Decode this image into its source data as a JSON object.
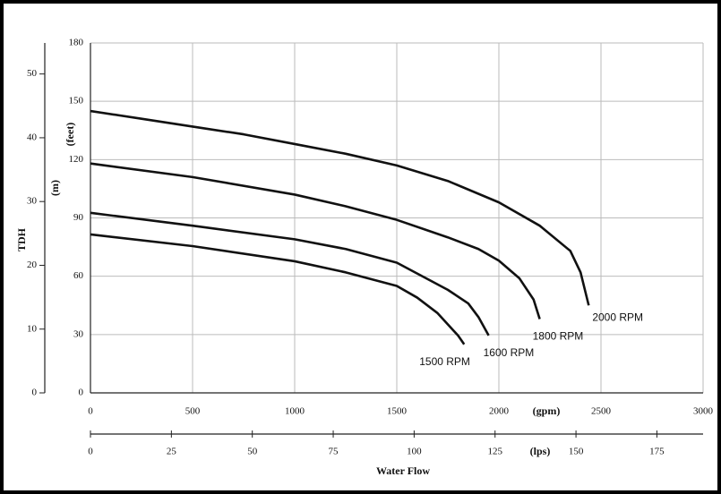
{
  "chart_data": {
    "type": "line",
    "y_label": "TDH",
    "y_unit": "(feet)",
    "y2_unit": "(m)",
    "x_unit": "(gpm)",
    "x2_unit": "(lps)",
    "x_label": "Water Flow",
    "xlim": [
      0,
      3000
    ],
    "xticks": [
      0,
      500,
      1000,
      1500,
      2000,
      2500,
      3000
    ],
    "x2lim": [
      0,
      189.27
    ],
    "x2ticks": [
      0,
      25,
      50,
      75,
      100,
      125,
      150,
      175
    ],
    "ylim": [
      0,
      180
    ],
    "yticks": [
      0,
      30,
      60,
      90,
      120,
      150,
      180
    ],
    "y2lim": [
      0,
      54.864
    ],
    "y2ticks": [
      0,
      10,
      20,
      30,
      40,
      50
    ],
    "grid": true,
    "series": [
      {
        "name": "2000 RPM",
        "color": "#111111",
        "x": [
          0,
          250,
          500,
          750,
          1000,
          1250,
          1500,
          1750,
          2000,
          2200,
          2350,
          2400,
          2440
        ],
        "values": [
          145,
          141,
          137,
          133,
          128,
          123,
          117,
          109,
          98,
          86,
          73,
          62,
          45
        ]
      },
      {
        "name": "1800 RPM",
        "color": "#111111",
        "x": [
          0,
          500,
          1000,
          1250,
          1500,
          1750,
          1900,
          2000,
          2100,
          2170,
          2200
        ],
        "values": [
          118,
          111,
          102,
          96,
          89,
          80,
          74,
          68,
          59,
          48,
          38
        ]
      },
      {
        "name": "1600 RPM",
        "color": "#111111",
        "x": [
          0,
          500,
          1000,
          1250,
          1500,
          1750,
          1850,
          1900,
          1950
        ],
        "values": [
          92.6,
          86,
          79,
          74,
          67,
          53,
          46,
          39,
          29.5
        ]
      },
      {
        "name": "1500 RPM",
        "color": "#111111",
        "x": [
          0,
          500,
          1000,
          1250,
          1500,
          1600,
          1700,
          1800,
          1830
        ],
        "values": [
          81.5,
          75.5,
          67.7,
          62,
          55,
          49,
          41,
          29.5,
          25
        ]
      }
    ]
  }
}
